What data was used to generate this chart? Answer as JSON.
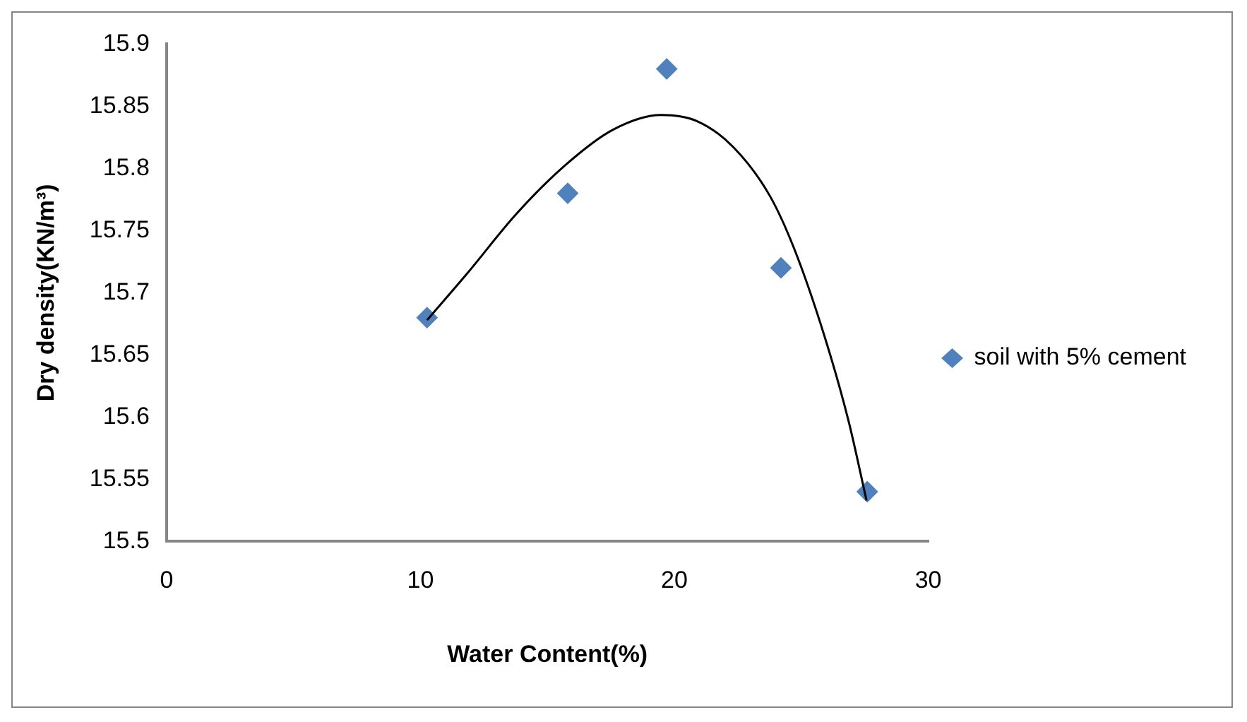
{
  "chart_data": {
    "type": "scatter",
    "xlabel": "Water Content(%)",
    "ylabel": "Dry density(KN/m³)",
    "xlim": [
      0,
      30
    ],
    "xticks": [
      0,
      10,
      20,
      30
    ],
    "ylim": [
      15.5,
      15.9
    ],
    "yticks": [
      15.5,
      15.55,
      15.6,
      15.65,
      15.7,
      15.75,
      15.8,
      15.85,
      15.9
    ],
    "grid": false,
    "legend": "right",
    "marker": "diamond",
    "series": [
      {
        "name": "soil with 5% cement",
        "color": "#4f81bd",
        "x": [
          10.26,
          15.8,
          19.7,
          24.2,
          27.6
        ],
        "values": [
          15.68,
          15.78,
          15.88,
          15.72,
          15.54
        ]
      },
      {
        "type": "line",
        "marker": "none",
        "color": "#000000",
        "x": [
          10.26,
          11.86,
          13.76,
          15.67,
          17.57,
          19.48,
          20.9,
          22.33,
          23.76,
          24.71,
          25.9,
          26.86,
          27.57
        ],
        "values": [
          15.678,
          15.716,
          15.763,
          15.802,
          15.831,
          15.843,
          15.838,
          15.817,
          15.778,
          15.736,
          15.666,
          15.597,
          15.533
        ]
      }
    ]
  }
}
